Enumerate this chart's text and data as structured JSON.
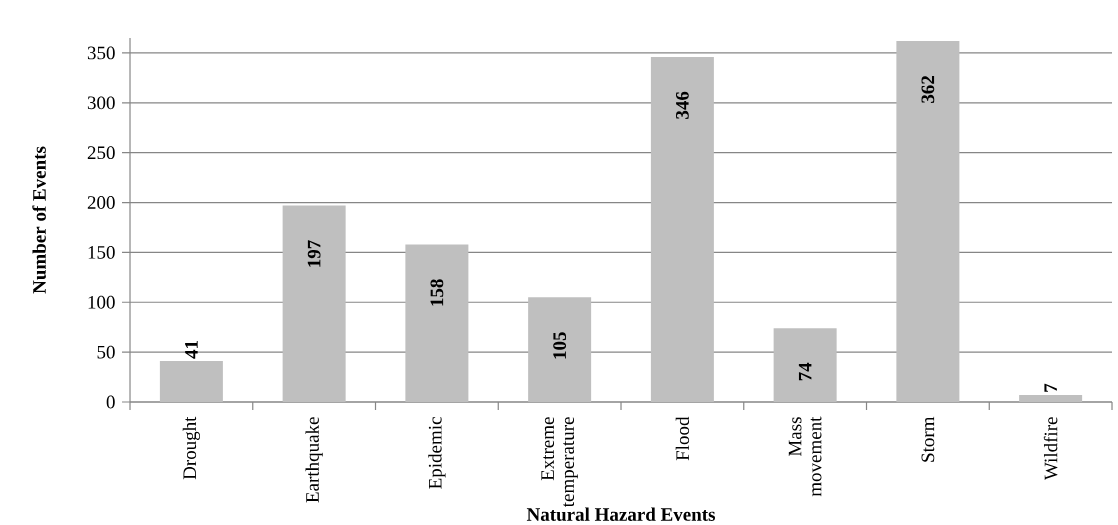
{
  "chart_data": {
    "type": "bar",
    "xlabel": "Natural Hazard Events",
    "ylabel": "Number of Events",
    "categories": [
      "Drought",
      "Earthquake",
      "Epidemic",
      "Extreme temperature",
      "Flood",
      "Mass movement",
      "Storm",
      "Wildfire"
    ],
    "values": [
      41,
      197,
      158,
      105,
      346,
      74,
      362,
      7
    ],
    "color": "#bfbfbf",
    "ylim": [
      0,
      365
    ],
    "yticks": [
      0,
      50,
      100,
      150,
      200,
      250,
      300,
      350
    ],
    "grid": "y",
    "data_labels": true
  }
}
